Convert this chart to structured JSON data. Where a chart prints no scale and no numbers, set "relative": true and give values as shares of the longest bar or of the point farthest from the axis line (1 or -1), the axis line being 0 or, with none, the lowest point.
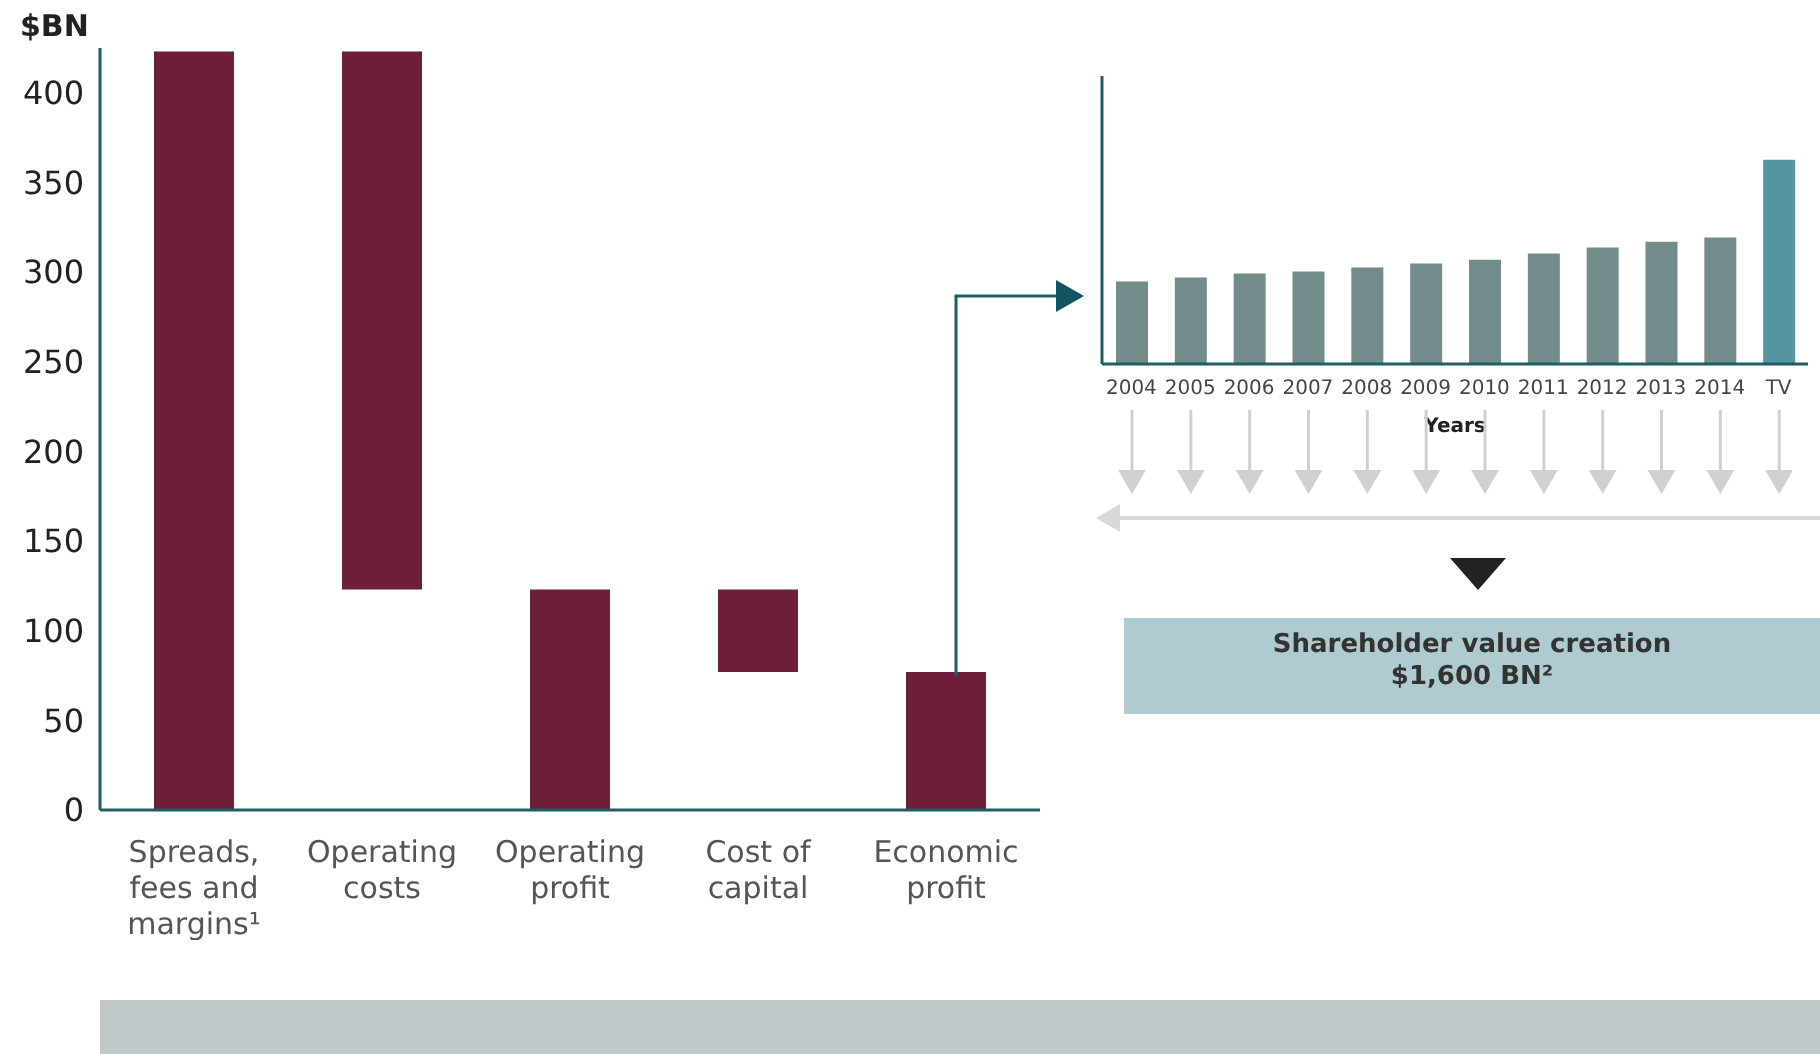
{
  "chart_data": [
    {
      "type": "bar",
      "ylabel": "$BN",
      "categories": [
        "Spreads, fees and margins¹",
        "Operating costs",
        "Operating profit",
        "Cost of capital",
        "Economic profit"
      ],
      "values": [
        423,
        300,
        123,
        46,
        77
      ],
      "base": [
        0,
        123,
        0,
        77,
        0
      ],
      "color": "#6d1f3a",
      "ylim": [
        0,
        425
      ],
      "yticks": [
        0,
        50,
        100,
        150,
        200,
        250,
        300,
        350,
        400
      ],
      "grid": false,
      "legend": false
    },
    {
      "type": "bar",
      "relative": true,
      "xlabel": "Years",
      "categories": [
        "2004",
        "2005",
        "2006",
        "2007",
        "2008",
        "2009",
        "2010",
        "2011",
        "2012",
        "2013",
        "2014",
        "TV"
      ],
      "values": [
        0.404,
        0.423,
        0.443,
        0.453,
        0.472,
        0.492,
        0.511,
        0.541,
        0.57,
        0.599,
        0.619,
        1
      ],
      "colors": [
        "#728b8b",
        "#728b8b",
        "#728b8b",
        "#728b8b",
        "#728b8b",
        "#728b8b",
        "#728b8b",
        "#728b8b",
        "#728b8b",
        "#728b8b",
        "#728b8b",
        "#5594a0"
      ],
      "annotations": [
        "Shareholder value creation",
        "$1,600 BN²"
      ],
      "grid": false,
      "legend": false
    }
  ]
}
